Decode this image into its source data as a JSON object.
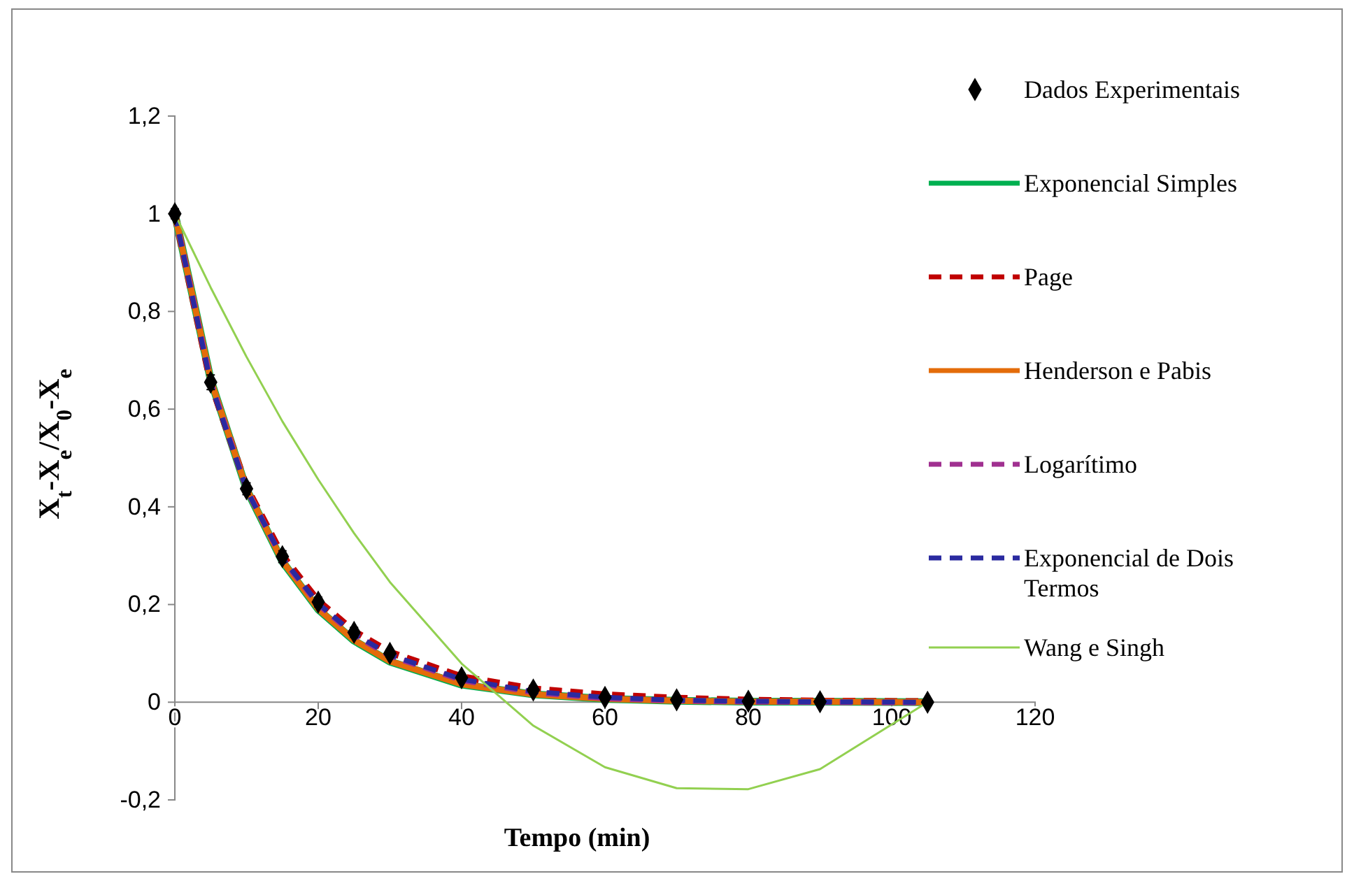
{
  "chart_data": {
    "type": "line",
    "xlabel": "Tempo (min)",
    "ylabel": "X$_{t}$-X$_{e}$/X$_{0}$-X$_{e}$",
    "x": [
      0,
      5,
      10,
      15,
      20,
      25,
      30,
      40,
      50,
      60,
      70,
      80,
      90,
      105
    ],
    "xlim": [
      0,
      120
    ],
    "xticks": [
      0,
      20,
      40,
      60,
      80,
      100,
      120
    ],
    "ylim": [
      -0.2,
      1.2
    ],
    "yticks": [
      {
        "value": -0.2,
        "label": "-0,2"
      },
      0,
      {
        "value": 0.2,
        "label": "0,2"
      },
      {
        "value": 0.4,
        "label": "0,4"
      },
      {
        "value": 0.6,
        "label": "0,6"
      },
      {
        "value": 0.8,
        "label": "0,8"
      },
      1,
      {
        "value": 1.2,
        "label": "1,2"
      }
    ],
    "grid": false,
    "legend": "right",
    "series": [
      {
        "name": "Dados Experimentais",
        "type": "scatter",
        "marker": "diamond",
        "color": "#000000",
        "values": [
          1,
          0.655,
          0.437,
          0.298,
          0.205,
          0.143,
          0.1,
          0.05,
          0.025,
          0.01,
          0.005,
          0.002,
          0.001,
          0
        ],
        "errors": [
          0.01,
          0.015,
          0.012,
          0.012,
          0.01,
          0.01,
          0.008,
          0.008,
          0.008,
          0.006,
          0.004,
          0.004,
          0.004,
          0.004
        ]
      },
      {
        "name": "Exponencial Simples",
        "color": "#00b050",
        "line_style": "solid",
        "values": [
          1,
          0.66,
          0.436,
          0.288,
          0.19,
          0.126,
          0.083,
          0.036,
          0.016,
          0.007,
          0.003,
          0.001,
          0.001,
          0
        ]
      },
      {
        "name": "Page",
        "color": "#c00000",
        "line_style": "dashed",
        "values": [
          1,
          0.655,
          0.44,
          0.3,
          0.207,
          0.145,
          0.102,
          0.052,
          0.027,
          0.015,
          0.008,
          0.004,
          0.002,
          0.001
        ]
      },
      {
        "name": "Henderson e Pabis",
        "color": "#e46c0a",
        "line_style": "solid",
        "values": [
          1,
          0.66,
          0.437,
          0.289,
          0.191,
          0.127,
          0.084,
          0.037,
          0.016,
          0.007,
          0.003,
          0.001,
          0.001,
          0
        ]
      },
      {
        "name": "Logarítimo",
        "color": "#a03090",
        "line_style": "dashed",
        "values": [
          1,
          0.656,
          0.436,
          0.293,
          0.2,
          0.138,
          0.095,
          0.045,
          0.02,
          0.008,
          0.003,
          0.001,
          0,
          -0.001
        ]
      },
      {
        "name": "Exponencial de Dois Termos",
        "color": "#2a2aa0",
        "line_style": "dashed",
        "values": [
          1,
          0.652,
          0.435,
          0.295,
          0.202,
          0.14,
          0.097,
          0.047,
          0.022,
          0.01,
          0.004,
          0.002,
          0.001,
          0
        ]
      },
      {
        "name": "Wang e Singh",
        "color": "#92d050",
        "line_style": "solid",
        "values": [
          1,
          0.849,
          0.707,
          0.575,
          0.456,
          0.346,
          0.246,
          0.079,
          -0.048,
          -0.133,
          -0.176,
          -0.178,
          -0.137,
          0
        ]
      }
    ]
  }
}
